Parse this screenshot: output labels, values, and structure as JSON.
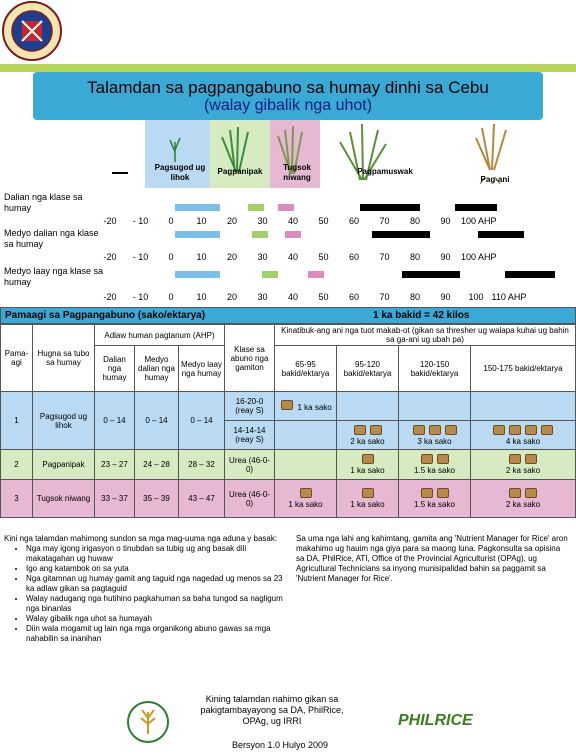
{
  "seal_text": "PROVINCE OF CEBU · OFFICIAL SEAL",
  "header": {
    "title": "Talamdan sa pagpangabuno sa humay dinhi sa Cebu",
    "subtitle": "(walay gibalik nga uhot)"
  },
  "stages": {
    "pagsugod": "Pagsugod ug lihok",
    "pagpanipak": "Pagpanipak",
    "tugsok": "Tugsok niwang",
    "pagpamuswak": "Pagpamuswak",
    "pagani": "Pag-ani"
  },
  "varieties": [
    {
      "label": "Dalian nga klase sa humay",
      "ticks": [
        "-20",
        "- 10",
        "0",
        "10",
        "20",
        "30",
        "40",
        "50",
        "60",
        "70",
        "80",
        "90",
        "100 AHP"
      ]
    },
    {
      "label": "Medyo dalian nga klase sa humay",
      "ticks": [
        "-20",
        "- 10",
        "0",
        "10",
        "20",
        "30",
        "40",
        "50",
        "60",
        "70",
        "80",
        "90",
        "100 AHP"
      ]
    },
    {
      "label": "Medyo laay nga klase sa humay",
      "ticks": [
        "-20",
        "- 10",
        "0",
        "10",
        "20",
        "30",
        "40",
        "50",
        "60",
        "70",
        "80",
        "90",
        "100",
        "110 AHP"
      ]
    }
  ],
  "table_title": "Pamaagi sa Pagpangabuno (sako/ektarya)",
  "conversion": "1 ka bakid = 42 kilos",
  "table": {
    "col_pamaagi": "Pama-agi",
    "col_hugna": "Hugna sa tubo sa humay",
    "col_adlaw": "Adlaw human pagtanum (AHP)",
    "col_dalian": "Dalian nga humay",
    "col_medyo_dalian": "Medyo dalian nga humay",
    "col_medyo_laay": "Medyo laay nga humay",
    "col_klase": "Klase sa abuno nga gamiton",
    "col_kinatibuk": "Kinatibuk-ang ani nga tuot makab-ot (gikan sa thresher ug walapa kuhai ug bahin sa ga-ani ug ubah pa)",
    "yield_cols": [
      "65-95 bakid/ektarya",
      "95-120 bakid/ektarya",
      "120-150 bakid/ektarya",
      "150-175 bakid/ektarya"
    ],
    "rows": [
      {
        "num": "1",
        "stage": "Pagsugod ug lihok",
        "d": "0 – 14",
        "md": "0 – 14",
        "ml": "0 – 14",
        "sub": [
          {
            "fert": "16-20-0 (reay S)",
            "y": [
              "1 ka sako",
              "",
              "",
              ""
            ]
          },
          {
            "fert": "14-14-14 (reay S)",
            "y": [
              "",
              "2 ka sako",
              "3 ka sako",
              "4 ka sako"
            ]
          }
        ]
      },
      {
        "num": "2",
        "stage": "Pagpanipak",
        "d": "23 – 27",
        "md": "24 – 28",
        "ml": "28 – 32",
        "sub": [
          {
            "fert": "Urea (46-0-0)",
            "y": [
              "",
              "1 ka sako",
              "1.5 ka sako",
              "2 ka sako"
            ]
          }
        ]
      },
      {
        "num": "3",
        "stage": "Tugsok niwang",
        "d": "33 – 37",
        "md": "35 – 39",
        "ml": "43 – 47",
        "sub": [
          {
            "fert": "Urea (46-0-0)",
            "y": [
              "1 ka sako",
              "1 ka sako",
              "1.5 ka sako",
              "2 ka sako"
            ]
          }
        ]
      }
    ]
  },
  "notes_left_intro": "Kini nga talamdan mahimong sundon sa mga mag-uuma nga aduna y basak:",
  "notes_left": [
    "Nga may igong irigasyon o tinubdan sa tubig ug ang basak dili makatagahan ug huwaw",
    "Igo ang katambok on sa yuta",
    "Nga gitamnan ug humay gamit ang taguid nga nagedad ug menos sa 23 ka adlaw gikan sa pagtaguid",
    "Walay nadugang nga hutihino pagkahuman sa baha tungod sa nagligum nga binanlas",
    "Walay gibalik nga uhot sa humayah",
    "Diin wala mogamit ug lain nga mga organikong abuno gawas sa mga nahabilin sa inanihan"
  ],
  "notes_right": "Sa uma nga lahi ang kahimtang, gamita ang 'Nutrient Manager for Rice' aron makahimo ug hauim nga giya para sa maong luna. Pagkonsulta sa opisina sa DA, PhilRice, ATI, Office of the Provincial Agriculturist (OPAg), ug Agricultural Technicians sa inyong munisipalidad bahin sa paggamit sa 'Nutrient Manager for Rice'.",
  "footer_credit": "Kining talamdan nahimo gikan sa pakigtambayayong sa DA, PhilRice, OPAg, ug IRRI",
  "footer_version": "Bersyon 1.0 Hulyo 2009",
  "philrice_logo": "PHILRICE"
}
